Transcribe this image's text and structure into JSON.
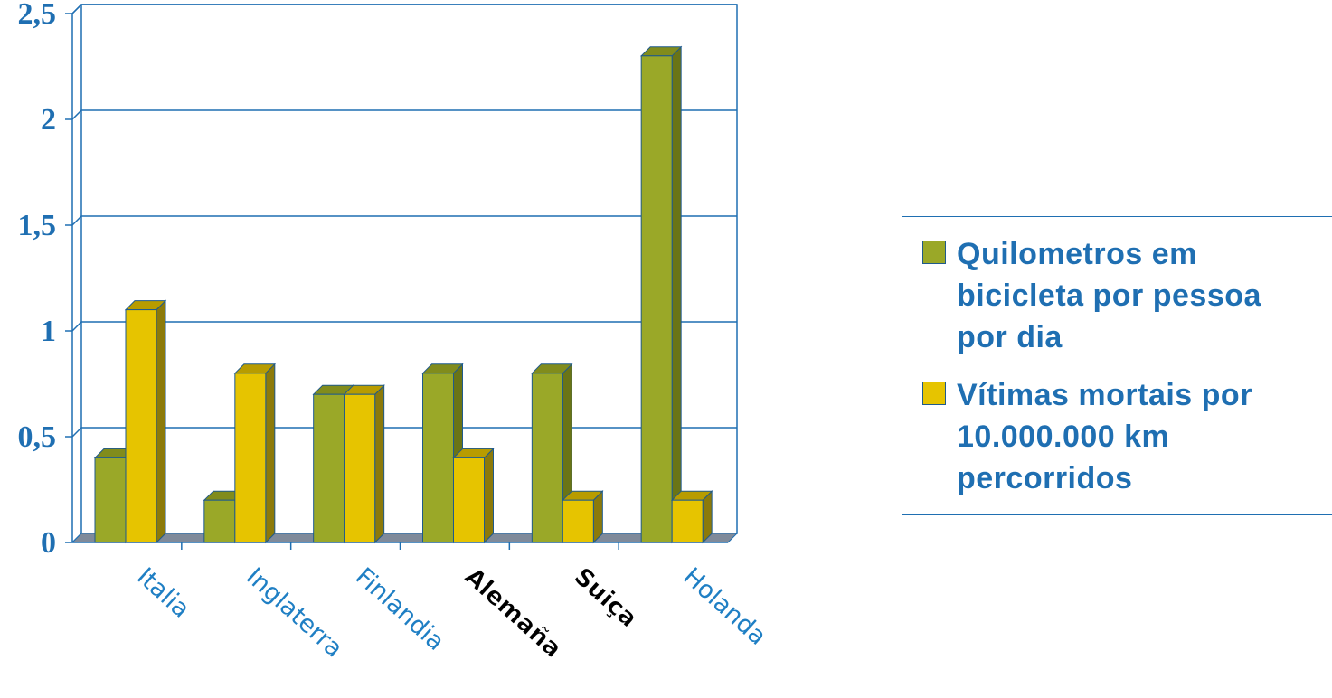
{
  "chart_data": {
    "type": "bar",
    "categories": [
      "Italia",
      "Inglaterra",
      "Finlandia",
      "Alemaña",
      "Suiça",
      "Holanda"
    ],
    "series": [
      {
        "name": "Quilometros em bicicleta por pessoa por dia",
        "values": [
          0.4,
          0.2,
          0.7,
          0.8,
          0.8,
          2.3
        ]
      },
      {
        "name": "Vítimas mortais por 10.000.000 km percorridos",
        "values": [
          1.1,
          0.8,
          0.7,
          0.4,
          0.2,
          0.2
        ]
      }
    ],
    "yticks": [
      "0",
      "0,5",
      "1",
      "1,5",
      "2",
      "2,5"
    ],
    "ylim": [
      0,
      2.5
    ],
    "grid": true,
    "legend_position": "right",
    "colors": {
      "series1_front": "#9aa828",
      "series1_side": "#6a7416",
      "series1_top": "#818c1c",
      "series2_front": "#e6c400",
      "series2_side": "#8c7a0a",
      "series2_top": "#b89c00",
      "axis": "#1f6fb2",
      "floor": "#7f8a9a",
      "tick_text": "#1f6fb2"
    },
    "legend": {
      "items": [
        {
          "label": "Quilometros em\nbicicleta por pessoa\npor dia",
          "color": "#9aa828"
        },
        {
          "label": "Vítimas mortais por\n10.000.000 km\npercorridos",
          "color": "#e6c400"
        }
      ]
    }
  }
}
